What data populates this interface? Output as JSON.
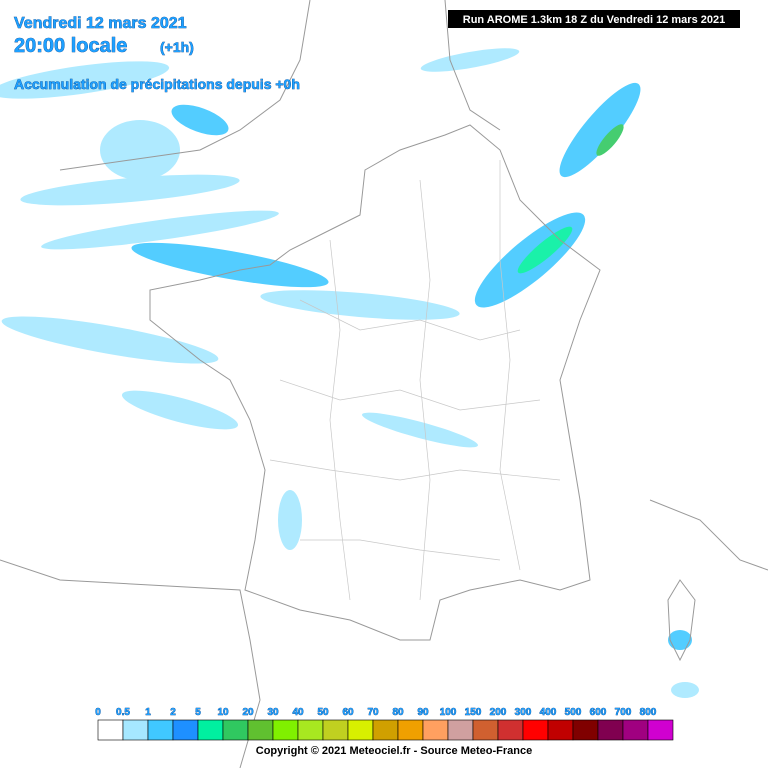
{
  "header": {
    "date": "Vendredi 12 mars 2021",
    "time": "20:00 locale",
    "offset": "(+1h)",
    "subtitle": "Accumulation de précipitations depuis +0h",
    "run": "Run AROME 1.3km 18 Z du Vendredi 12 mars 2021"
  },
  "legend": {
    "labels": [
      "0",
      "0.5",
      "1",
      "2",
      "5",
      "10",
      "20",
      "30",
      "40",
      "50",
      "60",
      "70",
      "80",
      "90",
      "100",
      "150",
      "200",
      "300",
      "400",
      "500",
      "600",
      "700",
      "800"
    ],
    "colors": [
      "#ffffff",
      "#a6e8ff",
      "#40c8ff",
      "#1e90ff",
      "#00f0a0",
      "#30c860",
      "#60c030",
      "#80f000",
      "#a8e820",
      "#c0d020",
      "#d8f000",
      "#d0a000",
      "#f0a000",
      "#ffa060",
      "#d0a0a0",
      "#d06030",
      "#d03030",
      "#ff0000",
      "#c00000",
      "#800000",
      "#800050",
      "#a00080",
      "#d000d0"
    ]
  },
  "footer": {
    "copyright": "Copyright © 2021 Meteociel.fr - Source Meteo-France"
  }
}
